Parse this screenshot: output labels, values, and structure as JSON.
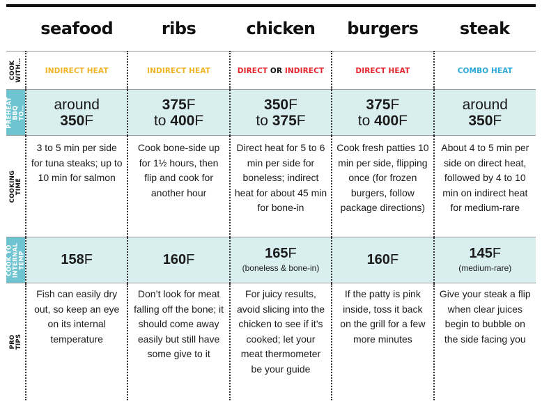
{
  "columns": [
    "seafood",
    "ribs",
    "chicken",
    "burgers",
    "steak"
  ],
  "colors": {
    "indirect": "#f0b323",
    "direct": "#e4232b",
    "combo": "#2aa8d8",
    "teal_bg": "#d9eeee",
    "teal_label": "#6fc4d2"
  },
  "rows": {
    "cook_with": {
      "label": "COOK\nWITH…",
      "cells": [
        {
          "text": "INDIRECT HEAT",
          "color": "#f0b323"
        },
        {
          "text": "INDIRECT HEAT",
          "color": "#f0b323"
        },
        {
          "part1": "DIRECT",
          "or": "OR",
          "part2": "INDIRECT",
          "color": "#e4232b"
        },
        {
          "text": "DIRECT HEAT",
          "color": "#e4232b"
        },
        {
          "text": "COMBO HEAT",
          "color": "#2aa8d8"
        }
      ]
    },
    "preheat": {
      "label": "PREHEAT\nBBQ TO…",
      "cells": [
        {
          "line1": "around",
          "num": "350",
          "unit": "F"
        },
        {
          "num1": "375",
          "unit1": "F",
          "to": "to ",
          "num2": "400",
          "unit2": "F"
        },
        {
          "num1": "350",
          "unit1": "F",
          "to": "to ",
          "num2": "375",
          "unit2": "F"
        },
        {
          "num1": "375",
          "unit1": "F",
          "to": "to ",
          "num2": "400",
          "unit2": "F"
        },
        {
          "line1": "around",
          "num": "350",
          "unit": "F"
        }
      ]
    },
    "cooking_time": {
      "label": "COOKING TIME",
      "cells": [
        "3 to 5 min per side for tuna steaks; up to 10 min for salmon",
        "Cook bone-side up for 1½ hours, then flip and cook for another hour",
        "Direct heat for 5 to 6 min per side for boneless; indirect heat for about 45 min for bone-in",
        "Cook fresh patties 10 min per side, flipping once (for frozen burgers, follow package directions)",
        "About 4 to 5 min per side on direct heat, followed by 4 to 10 min on indirect heat for medium-rare"
      ]
    },
    "internal_temp": {
      "label": "COOK TO\nINTERNAL\nTEMP",
      "cells": [
        {
          "num": "158",
          "unit": "F",
          "note": ""
        },
        {
          "num": "160",
          "unit": "F",
          "note": ""
        },
        {
          "num": "165",
          "unit": "F",
          "note": "(boneless & bone-in)"
        },
        {
          "num": "160",
          "unit": "F",
          "note": ""
        },
        {
          "num": "145",
          "unit": "F",
          "note": "(medium-rare)"
        }
      ]
    },
    "pro_tips": {
      "label": "PRO TIPS",
      "cells": [
        "Fish can easily dry out, so keep an eye on its internal temperature",
        "Don’t look for meat falling off the bone; it should come away easily but still have some give to it",
        "For juicy results, avoid slicing into the chicken to see if it’s cooked; let your meat thermometer be your guide",
        "If the patty is pink inside, toss it back on the grill for a few more minutes",
        "Give your steak a flip when clear juices begin to bubble on the side facing you"
      ]
    }
  }
}
